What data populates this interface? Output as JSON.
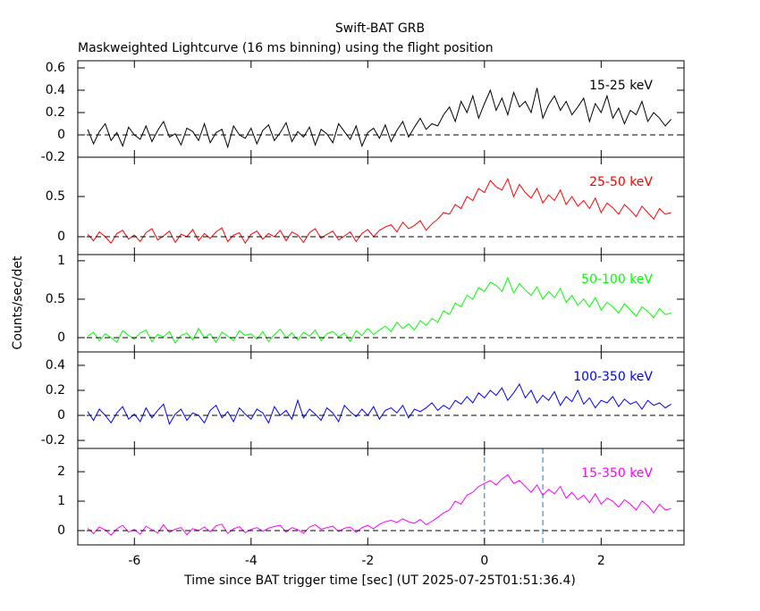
{
  "chart_data": [
    {
      "type": "line",
      "title": "Swift-BAT GRB",
      "subtitle": "Maskweighted Lightcurve (16 ms binning) using the flight position",
      "label": "15-25 keV",
      "color": "#000000",
      "x": [
        -6.8,
        -6.7,
        -6.6,
        -6.5,
        -6.4,
        -6.3,
        -6.2,
        -6.1,
        -6.0,
        -5.9,
        -5.8,
        -5.7,
        -5.6,
        -5.5,
        -5.4,
        -5.3,
        -5.2,
        -5.1,
        -5.0,
        -4.9,
        -4.8,
        -4.7,
        -4.6,
        -4.5,
        -4.4,
        -4.3,
        -4.2,
        -4.1,
        -4.0,
        -3.9,
        -3.8,
        -3.7,
        -3.6,
        -3.5,
        -3.4,
        -3.3,
        -3.2,
        -3.1,
        -3.0,
        -2.9,
        -2.8,
        -2.7,
        -2.6,
        -2.5,
        -2.4,
        -2.3,
        -2.2,
        -2.1,
        -2.0,
        -1.9,
        -1.8,
        -1.7,
        -1.6,
        -1.5,
        -1.4,
        -1.3,
        -1.2,
        -1.1,
        -1.0,
        -0.9,
        -0.8,
        -0.7,
        -0.6,
        -0.5,
        -0.4,
        -0.3,
        -0.2,
        -0.1,
        0.0,
        0.1,
        0.2,
        0.3,
        0.4,
        0.5,
        0.6,
        0.7,
        0.8,
        0.9,
        1.0,
        1.1,
        1.2,
        1.3,
        1.4,
        1.5,
        1.6,
        1.7,
        1.8,
        1.9,
        2.0,
        2.1,
        2.2,
        2.3,
        2.4,
        2.5,
        2.6,
        2.7,
        2.8,
        2.9,
        3.0,
        3.1,
        3.2
      ],
      "values": [
        0.05,
        -0.08,
        0.03,
        0.1,
        -0.05,
        0.02,
        -0.1,
        0.07,
        0.0,
        -0.04,
        0.08,
        -0.06,
        0.04,
        0.12,
        -0.02,
        0.01,
        -0.09,
        0.06,
        0.03,
        -0.05,
        0.1,
        -0.07,
        0.02,
        0.05,
        -0.11,
        0.08,
        0.0,
        -0.03,
        0.06,
        -0.08,
        0.04,
        0.09,
        -0.05,
        0.02,
        0.11,
        -0.06,
        0.03,
        -0.02,
        0.07,
        -0.09,
        0.05,
        0.01,
        -0.07,
        0.1,
        0.03,
        -0.04,
        0.08,
        -0.1,
        0.02,
        0.06,
        -0.03,
        0.09,
        -0.06,
        0.04,
        0.12,
        -0.02,
        0.07,
        0.15,
        0.05,
        0.1,
        0.08,
        0.18,
        0.25,
        0.12,
        0.3,
        0.2,
        0.35,
        0.15,
        0.28,
        0.4,
        0.22,
        0.33,
        0.18,
        0.38,
        0.25,
        0.3,
        0.2,
        0.42,
        0.15,
        0.27,
        0.35,
        0.22,
        0.3,
        0.18,
        0.25,
        0.33,
        0.12,
        0.28,
        0.2,
        0.35,
        0.15,
        0.24,
        0.1,
        0.22,
        0.18,
        0.3,
        0.12,
        0.2,
        0.15,
        0.08,
        0.14
      ],
      "xlim": [
        -6.97,
        3.42
      ],
      "ylim": [
        -0.2,
        0.664
      ],
      "yticks": [
        -0.2,
        0,
        0.2,
        0.4,
        0.6
      ]
    },
    {
      "type": "line",
      "label": "25-50 keV",
      "color": "#ff0000",
      "x": [
        -6.8,
        -6.7,
        -6.6,
        -6.5,
        -6.4,
        -6.3,
        -6.2,
        -6.1,
        -6.0,
        -5.9,
        -5.8,
        -5.7,
        -5.6,
        -5.5,
        -5.4,
        -5.3,
        -5.2,
        -5.1,
        -5.0,
        -4.9,
        -4.8,
        -4.7,
        -4.6,
        -4.5,
        -4.4,
        -4.3,
        -4.2,
        -4.1,
        -4.0,
        -3.9,
        -3.8,
        -3.7,
        -3.6,
        -3.5,
        -3.4,
        -3.3,
        -3.2,
        -3.1,
        -3.0,
        -2.9,
        -2.8,
        -2.7,
        -2.6,
        -2.5,
        -2.4,
        -2.3,
        -2.2,
        -2.1,
        -2.0,
        -1.9,
        -1.8,
        -1.7,
        -1.6,
        -1.5,
        -1.4,
        -1.3,
        -1.2,
        -1.1,
        -1.0,
        -0.9,
        -0.8,
        -0.7,
        -0.6,
        -0.5,
        -0.4,
        -0.3,
        -0.2,
        -0.1,
        0.0,
        0.1,
        0.2,
        0.3,
        0.4,
        0.5,
        0.6,
        0.7,
        0.8,
        0.9,
        1.0,
        1.1,
        1.2,
        1.3,
        1.4,
        1.5,
        1.6,
        1.7,
        1.8,
        1.9,
        2.0,
        2.1,
        2.2,
        2.3,
        2.4,
        2.5,
        2.6,
        2.7,
        2.8,
        2.9,
        3.0,
        3.1,
        3.2
      ],
      "values": [
        0.03,
        -0.05,
        0.06,
        0.0,
        -0.08,
        0.04,
        0.08,
        -0.03,
        0.02,
        -0.06,
        0.05,
        0.1,
        -0.04,
        0.01,
        0.07,
        -0.07,
        0.03,
        0.0,
        0.09,
        -0.05,
        0.04,
        -0.02,
        0.06,
        0.11,
        -0.06,
        0.02,
        0.05,
        -0.08,
        0.03,
        0.07,
        -0.03,
        0.04,
        0.0,
        0.08,
        -0.05,
        0.06,
        0.02,
        -0.07,
        0.05,
        0.1,
        -0.02,
        0.03,
        0.07,
        -0.04,
        0.01,
        0.06,
        -0.06,
        0.04,
        0.09,
        0.0,
        0.08,
        0.12,
        0.15,
        0.06,
        0.18,
        0.1,
        0.14,
        0.2,
        0.08,
        0.16,
        0.22,
        0.3,
        0.28,
        0.4,
        0.35,
        0.5,
        0.45,
        0.6,
        0.55,
        0.7,
        0.62,
        0.58,
        0.72,
        0.5,
        0.65,
        0.55,
        0.48,
        0.6,
        0.42,
        0.52,
        0.45,
        0.58,
        0.4,
        0.5,
        0.38,
        0.45,
        0.35,
        0.48,
        0.3,
        0.42,
        0.36,
        0.28,
        0.4,
        0.33,
        0.25,
        0.38,
        0.3,
        0.22,
        0.35,
        0.28,
        0.3
      ],
      "xlim": [
        -6.97,
        3.42
      ],
      "ylim": [
        -0.222,
        0.989
      ],
      "yticks": [
        0,
        0.5
      ]
    },
    {
      "type": "line",
      "label": "50-100 keV",
      "color": "#00ff00",
      "ylabel": "Counts/sec/det",
      "x": [
        -6.8,
        -6.7,
        -6.6,
        -6.5,
        -6.4,
        -6.3,
        -6.2,
        -6.1,
        -6.0,
        -5.9,
        -5.8,
        -5.7,
        -5.6,
        -5.5,
        -5.4,
        -5.3,
        -5.2,
        -5.1,
        -5.0,
        -4.9,
        -4.8,
        -4.7,
        -4.6,
        -4.5,
        -4.4,
        -4.3,
        -4.2,
        -4.1,
        -4.0,
        -3.9,
        -3.8,
        -3.7,
        -3.6,
        -3.5,
        -3.4,
        -3.3,
        -3.2,
        -3.1,
        -3.0,
        -2.9,
        -2.8,
        -2.7,
        -2.6,
        -2.5,
        -2.4,
        -2.3,
        -2.2,
        -2.1,
        -2.0,
        -1.9,
        -1.8,
        -1.7,
        -1.6,
        -1.5,
        -1.4,
        -1.3,
        -1.2,
        -1.1,
        -1.0,
        -0.9,
        -0.8,
        -0.7,
        -0.6,
        -0.5,
        -0.4,
        -0.3,
        -0.2,
        -0.1,
        0.0,
        0.1,
        0.2,
        0.3,
        0.4,
        0.5,
        0.6,
        0.7,
        0.8,
        0.9,
        1.0,
        1.1,
        1.2,
        1.3,
        1.4,
        1.5,
        1.6,
        1.7,
        1.8,
        1.9,
        2.0,
        2.1,
        2.2,
        2.3,
        2.4,
        2.5,
        2.6,
        2.7,
        2.8,
        2.9,
        3.0,
        3.1,
        3.2
      ],
      "values": [
        0.02,
        0.07,
        -0.04,
        0.05,
        0.0,
        -0.06,
        0.09,
        0.03,
        -0.02,
        0.06,
        0.1,
        -0.05,
        0.04,
        0.01,
        0.08,
        -0.07,
        0.03,
        0.06,
        -0.03,
        0.12,
        0.0,
        0.05,
        -0.06,
        0.07,
        0.02,
        -0.04,
        0.09,
        0.03,
        0.05,
        -0.02,
        0.08,
        -0.05,
        0.04,
        0.11,
        0.0,
        0.06,
        -0.03,
        0.07,
        0.02,
        0.1,
        -0.04,
        0.05,
        0.08,
        0.01,
        0.06,
        -0.05,
        0.09,
        0.03,
        0.12,
        0.04,
        0.1,
        0.15,
        0.08,
        0.2,
        0.12,
        0.18,
        0.1,
        0.22,
        0.16,
        0.25,
        0.2,
        0.35,
        0.3,
        0.45,
        0.4,
        0.55,
        0.5,
        0.65,
        0.6,
        0.72,
        0.68,
        0.6,
        0.78,
        0.58,
        0.7,
        0.62,
        0.55,
        0.66,
        0.5,
        0.6,
        0.52,
        0.64,
        0.46,
        0.55,
        0.42,
        0.5,
        0.4,
        0.52,
        0.36,
        0.46,
        0.4,
        0.32,
        0.44,
        0.36,
        0.28,
        0.4,
        0.34,
        0.26,
        0.38,
        0.3,
        0.32
      ],
      "xlim": [
        -6.97,
        3.42
      ],
      "ylim": [
        -0.186,
        1.08
      ],
      "yticks": [
        0,
        0.5,
        1
      ]
    },
    {
      "type": "line",
      "label": "100-350 keV",
      "color": "#0000ff",
      "x": [
        -6.8,
        -6.7,
        -6.6,
        -6.5,
        -6.4,
        -6.3,
        -6.2,
        -6.1,
        -6.0,
        -5.9,
        -5.8,
        -5.7,
        -5.6,
        -5.5,
        -5.4,
        -5.3,
        -5.2,
        -5.1,
        -5.0,
        -4.9,
        -4.8,
        -4.7,
        -4.6,
        -4.5,
        -4.4,
        -4.3,
        -4.2,
        -4.1,
        -4.0,
        -3.9,
        -3.8,
        -3.7,
        -3.6,
        -3.5,
        -3.4,
        -3.3,
        -3.2,
        -3.1,
        -3.0,
        -2.9,
        -2.8,
        -2.7,
        -2.6,
        -2.5,
        -2.4,
        -2.3,
        -2.2,
        -2.1,
        -2.0,
        -1.9,
        -1.8,
        -1.7,
        -1.6,
        -1.5,
        -1.4,
        -1.3,
        -1.2,
        -1.1,
        -1.0,
        -0.9,
        -0.8,
        -0.7,
        -0.6,
        -0.5,
        -0.4,
        -0.3,
        -0.2,
        -0.1,
        0.0,
        0.1,
        0.2,
        0.3,
        0.4,
        0.5,
        0.6,
        0.7,
        0.8,
        0.9,
        1.0,
        1.1,
        1.2,
        1.3,
        1.4,
        1.5,
        1.6,
        1.7,
        1.8,
        1.9,
        2.0,
        2.1,
        2.2,
        2.3,
        2.4,
        2.5,
        2.6,
        2.7,
        2.8,
        2.9,
        3.0,
        3.1,
        3.2
      ],
      "values": [
        0.03,
        -0.04,
        0.05,
        0.0,
        -0.06,
        0.02,
        0.07,
        -0.03,
        0.01,
        -0.05,
        0.06,
        -0.02,
        0.04,
        0.09,
        -0.07,
        0.01,
        0.05,
        -0.04,
        0.02,
        0.0,
        -0.06,
        0.04,
        0.08,
        -0.02,
        0.03,
        -0.05,
        0.06,
        0.01,
        -0.03,
        0.05,
        0.02,
        -0.06,
        0.07,
        0.0,
        0.04,
        -0.03,
        0.12,
        -0.02,
        0.05,
        0.01,
        -0.04,
        0.06,
        0.02,
        -0.05,
        0.08,
        0.03,
        -0.01,
        0.05,
        0.0,
        0.07,
        -0.03,
        0.04,
        0.06,
        0.02,
        0.08,
        -0.02,
        0.05,
        0.03,
        0.06,
        0.1,
        0.04,
        0.08,
        0.05,
        0.12,
        0.09,
        0.15,
        0.1,
        0.18,
        0.14,
        0.2,
        0.16,
        0.22,
        0.12,
        0.18,
        0.25,
        0.14,
        0.2,
        0.1,
        0.16,
        0.12,
        0.19,
        0.08,
        0.15,
        0.11,
        0.2,
        0.09,
        0.14,
        0.06,
        0.12,
        0.1,
        0.15,
        0.07,
        0.13,
        0.09,
        0.11,
        0.05,
        0.12,
        0.08,
        0.1,
        0.06,
        0.09
      ],
      "xlim": [
        -6.97,
        3.42
      ],
      "ylim": [
        -0.264,
        0.507
      ],
      "yticks": [
        -0.2,
        0,
        0.2,
        0.4
      ]
    },
    {
      "type": "line",
      "label": "15-350 keV",
      "color": "#ff00ff",
      "xlabel": "Time since BAT trigger time [sec] (UT 2025-07-25T01:51:36.4)",
      "x": [
        -6.8,
        -6.7,
        -6.6,
        -6.5,
        -6.4,
        -6.3,
        -6.2,
        -6.1,
        -6.0,
        -5.9,
        -5.8,
        -5.7,
        -5.6,
        -5.5,
        -5.4,
        -5.3,
        -5.2,
        -5.1,
        -5.0,
        -4.9,
        -4.8,
        -4.7,
        -4.6,
        -4.5,
        -4.4,
        -4.3,
        -4.2,
        -4.1,
        -4.0,
        -3.9,
        -3.8,
        -3.7,
        -3.6,
        -3.5,
        -3.4,
        -3.3,
        -3.2,
        -3.1,
        -3.0,
        -2.9,
        -2.8,
        -2.7,
        -2.6,
        -2.5,
        -2.4,
        -2.3,
        -2.2,
        -2.1,
        -2.0,
        -1.9,
        -1.8,
        -1.7,
        -1.6,
        -1.5,
        -1.4,
        -1.3,
        -1.2,
        -1.1,
        -1.0,
        -0.9,
        -0.8,
        -0.7,
        -0.6,
        -0.5,
        -0.4,
        -0.3,
        -0.2,
        -0.1,
        0.0,
        0.1,
        0.2,
        0.3,
        0.4,
        0.5,
        0.6,
        0.7,
        0.8,
        0.9,
        1.0,
        1.1,
        1.2,
        1.3,
        1.4,
        1.5,
        1.6,
        1.7,
        1.8,
        1.9,
        2.0,
        2.1,
        2.2,
        2.3,
        2.4,
        2.5,
        2.6,
        2.7,
        2.8,
        2.9,
        3.0,
        3.1,
        3.2
      ],
      "values": [
        0.08,
        -0.1,
        0.12,
        0.02,
        -0.15,
        0.06,
        0.18,
        -0.05,
        0.04,
        -0.12,
        0.15,
        0.03,
        -0.08,
        0.2,
        -0.06,
        0.05,
        0.1,
        -0.14,
        0.07,
        0.0,
        0.12,
        -0.04,
        0.16,
        0.22,
        -0.1,
        0.06,
        0.13,
        -0.07,
        0.04,
        0.1,
        -0.02,
        0.08,
        0.14,
        0.18,
        -0.05,
        0.1,
        0.03,
        -0.09,
        0.12,
        0.2,
        0.05,
        0.1,
        0.15,
        -0.03,
        0.08,
        0.12,
        -0.06,
        0.1,
        0.18,
        0.06,
        0.22,
        0.3,
        0.35,
        0.28,
        0.4,
        0.3,
        0.25,
        0.38,
        0.2,
        0.32,
        0.45,
        0.6,
        0.7,
        1.0,
        0.9,
        1.2,
        1.3,
        1.5,
        1.6,
        1.7,
        1.55,
        1.75,
        1.9,
        1.6,
        1.7,
        1.5,
        1.3,
        1.55,
        1.2,
        1.4,
        1.25,
        1.5,
        1.1,
        1.3,
        1.05,
        1.2,
        0.95,
        1.25,
        0.9,
        1.1,
        1.0,
        0.8,
        1.05,
        0.9,
        0.7,
        1.0,
        0.85,
        0.6,
        0.9,
        0.7,
        0.75
      ],
      "xlim": [
        -6.97,
        3.42
      ],
      "ylim": [
        -0.485,
        2.79
      ],
      "yticks": [
        0,
        1,
        2
      ],
      "xticks": [
        -6,
        -4,
        -2,
        0,
        2
      ],
      "vlines": [
        0,
        1
      ]
    }
  ]
}
